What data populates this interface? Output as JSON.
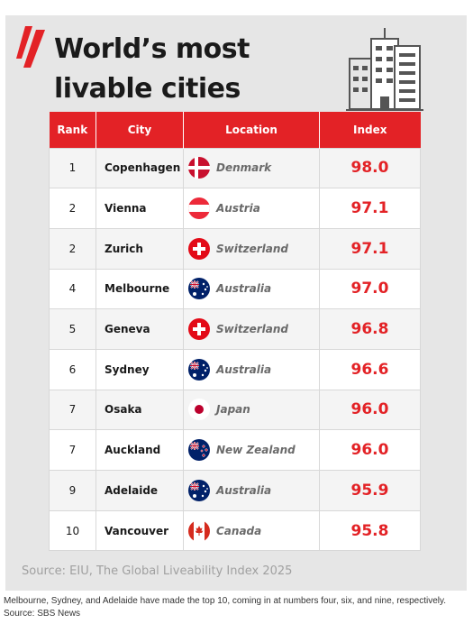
{
  "header": {
    "title_line1": "World’s most",
    "title_line2": "livable cities",
    "logo_icon": "sbs-logo-icon",
    "illustration_icon": "city-buildings-icon"
  },
  "colors": {
    "accent_red": "#e32226",
    "background": "#e6e6e6",
    "title_text": "#1a1a1a",
    "country_text": "#6a6a6a"
  },
  "chart_data": {
    "type": "table",
    "title": "World’s most livable cities",
    "columns": [
      "Rank",
      "City",
      "Location",
      "Index"
    ],
    "rows": [
      {
        "rank": "1",
        "city": "Copenhagen",
        "location": "Denmark",
        "flag": "denmark-flag-icon",
        "index": "98.0"
      },
      {
        "rank": "2",
        "city": "Vienna",
        "location": "Austria",
        "flag": "austria-flag-icon",
        "index": "97.1"
      },
      {
        "rank": "2",
        "city": "Zurich",
        "location": "Switzerland",
        "flag": "switzerland-flag-icon",
        "index": "97.1"
      },
      {
        "rank": "4",
        "city": "Melbourne",
        "location": "Australia",
        "flag": "australia-flag-icon",
        "index": "97.0"
      },
      {
        "rank": "5",
        "city": "Geneva",
        "location": "Switzerland",
        "flag": "switzerland-flag-icon",
        "index": "96.8"
      },
      {
        "rank": "6",
        "city": "Sydney",
        "location": "Australia",
        "flag": "australia-flag-icon",
        "index": "96.6"
      },
      {
        "rank": "7",
        "city": "Osaka",
        "location": "Japan",
        "flag": "japan-flag-icon",
        "index": "96.0"
      },
      {
        "rank": "7",
        "city": "Auckland",
        "location": "New Zealand",
        "flag": "new-zealand-flag-icon",
        "index": "96.0"
      },
      {
        "rank": "9",
        "city": "Adelaide",
        "location": "Australia",
        "flag": "australia-flag-icon",
        "index": "95.9"
      },
      {
        "rank": "10",
        "city": "Vancouver",
        "location": "Canada",
        "flag": "canada-flag-icon",
        "index": "95.8"
      }
    ],
    "source": "Source: EIU, The Global Liveability Index 2025"
  },
  "caption": {
    "text": "Melbourne, Sydney, and Adelaide have made the top 10, coming in at numbers four, six, and nine, respectively.",
    "source": "Source: SBS News"
  }
}
